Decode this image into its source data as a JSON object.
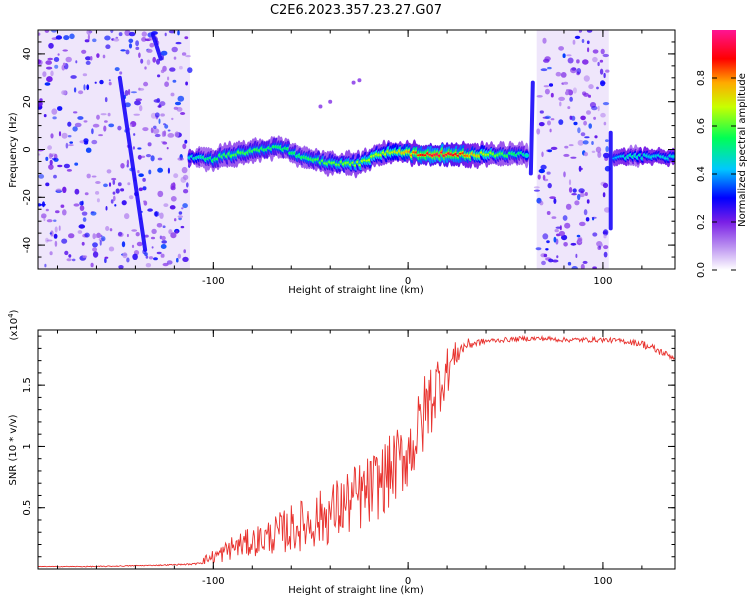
{
  "figure": {
    "title": "C2E6.2023.357.23.27.G07"
  },
  "chart_data": [
    {
      "type": "heatmap",
      "xlabel": "Height of straight line (km)",
      "ylabel": "Frequency (Hz)",
      "xlim": [
        -190,
        137
      ],
      "ylim": [
        -50,
        50
      ],
      "xticks": [
        -100,
        0,
        100
      ],
      "yticks": [
        -40,
        -20,
        0,
        20,
        40
      ],
      "grid": false,
      "colorbar": {
        "label": "Normalized spectral amplitude",
        "range": [
          0,
          1
        ],
        "ticks": [
          0.0,
          0.2,
          0.4,
          0.6,
          0.8
        ],
        "colormap": [
          "#ffffff",
          "#8a2be2",
          "#0000ff",
          "#00ffff",
          "#00ff00",
          "#ffff00",
          "#ff0000",
          "#ff1493"
        ]
      },
      "noise_regions": [
        {
          "x_from": -190,
          "x_to": -112,
          "level": 0.18
        },
        {
          "x_from": 66,
          "x_to": 103,
          "level": 0.18
        }
      ],
      "ridge": [
        {
          "x": -112,
          "y": -3,
          "amp": 0.45
        },
        {
          "x": -100,
          "y": -4,
          "amp": 0.55
        },
        {
          "x": -90,
          "y": -2,
          "amp": 0.6
        },
        {
          "x": -80,
          "y": -1,
          "amp": 0.58
        },
        {
          "x": -65,
          "y": 1,
          "amp": 0.55
        },
        {
          "x": -55,
          "y": -3,
          "amp": 0.55
        },
        {
          "x": -45,
          "y": -5,
          "amp": 0.6
        },
        {
          "x": -35,
          "y": -6,
          "amp": 0.62
        },
        {
          "x": -25,
          "y": -6,
          "amp": 0.65
        },
        {
          "x": -15,
          "y": -2,
          "amp": 0.68
        },
        {
          "x": -5,
          "y": -1,
          "amp": 0.72
        },
        {
          "x": 5,
          "y": -2,
          "amp": 0.85
        },
        {
          "x": 15,
          "y": -2,
          "amp": 0.95
        },
        {
          "x": 25,
          "y": -2,
          "amp": 0.9
        },
        {
          "x": 35,
          "y": -2,
          "amp": 0.75
        },
        {
          "x": 45,
          "y": -2,
          "amp": 0.62
        },
        {
          "x": 55,
          "y": -2,
          "amp": 0.55
        },
        {
          "x": 60,
          "y": -2,
          "amp": 0.5
        },
        {
          "x": 106,
          "y": -3,
          "amp": 0.4
        },
        {
          "x": 115,
          "y": -3,
          "amp": 0.5
        },
        {
          "x": 125,
          "y": -3,
          "amp": 0.45
        },
        {
          "x": 137,
          "y": -3,
          "amp": 0.45
        }
      ],
      "streaks": [
        {
          "x1": -148,
          "y1": 30,
          "x2": -135,
          "y2": -42
        },
        {
          "x1": -131,
          "y1": 48,
          "x2": -127,
          "y2": 38
        },
        {
          "x1": 64,
          "y1": 28,
          "x2": 63,
          "y2": -10
        },
        {
          "x1": 104,
          "y1": 7,
          "x2": 104,
          "y2": -33
        }
      ]
    },
    {
      "type": "line",
      "xlabel": "Height of straight line (km)",
      "ylabel": "SNR (10 * v/v)",
      "y_multiplier_label": "(x10",
      "y_multiplier_exp": "4",
      "y_multiplier_close": ")",
      "xlim": [
        -190,
        137
      ],
      "ylim": [
        0,
        1.95
      ],
      "xticks": [
        -100,
        0,
        100
      ],
      "yticks": [
        0.5,
        1.0,
        1.5
      ],
      "grid": false,
      "series": [
        {
          "color": "#e8322e",
          "x": [
            -190,
            -160,
            -130,
            -110,
            -100,
            -95,
            -90,
            -80,
            -70,
            -60,
            -50,
            -40,
            -30,
            -20,
            -10,
            0,
            5,
            10,
            15,
            20,
            25,
            30,
            40,
            50,
            60,
            70,
            80,
            90,
            100,
            110,
            120,
            125,
            130,
            137
          ],
          "y": [
            0.02,
            0.02,
            0.03,
            0.04,
            0.1,
            0.13,
            0.18,
            0.22,
            0.27,
            0.33,
            0.38,
            0.45,
            0.55,
            0.63,
            0.78,
            0.95,
            1.1,
            1.35,
            1.5,
            1.62,
            1.76,
            1.83,
            1.86,
            1.87,
            1.88,
            1.88,
            1.87,
            1.87,
            1.87,
            1.86,
            1.84,
            1.8,
            1.77,
            1.72
          ],
          "jitter": [
            0.002,
            0.004,
            0.004,
            0.006,
            0.06,
            0.08,
            0.1,
            0.12,
            0.15,
            0.2,
            0.22,
            0.25,
            0.28,
            0.3,
            0.3,
            0.3,
            0.32,
            0.34,
            0.28,
            0.2,
            0.1,
            0.05,
            0.02,
            0.02,
            0.02,
            0.02,
            0.02,
            0.02,
            0.02,
            0.02,
            0.03,
            0.04,
            0.03,
            0.02
          ]
        }
      ]
    }
  ]
}
